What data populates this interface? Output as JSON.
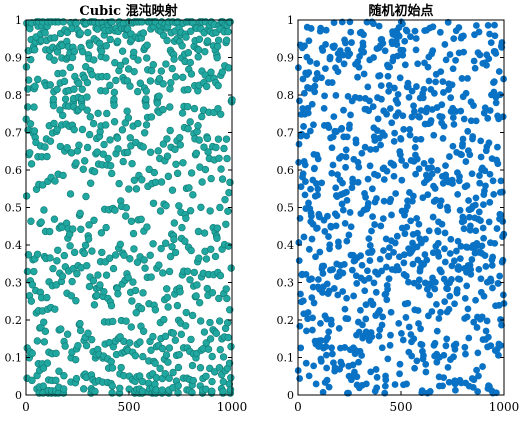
{
  "chart_data": [
    {
      "type": "scatter",
      "title": "Cubic 混沌映射",
      "xlabel": "",
      "ylabel": "",
      "xlim": [
        0,
        1000
      ],
      "ylim": [
        0,
        1
      ],
      "xticks": [
        0,
        500,
        1000
      ],
      "yticks": [
        0,
        0.1,
        0.2,
        0.3,
        0.4,
        0.5,
        0.6,
        0.7,
        0.8,
        0.9,
        1
      ],
      "xtick_labels": [
        "0",
        "500",
        "1000"
      ],
      "ytick_labels": [
        "0",
        "0.1",
        "0.2",
        "0.3",
        "0.4",
        "0.5",
        "0.6",
        "0.7",
        "0.8",
        "0.9",
        "1"
      ],
      "point_count": 1000,
      "marker_fill": "#20a7a0",
      "marker_edge": "#117a74",
      "grid": false,
      "distribution": "cubic chaotic map values: dense near 0.97-1.0 and near 0.02-0.1, banded/clustered elsewhere"
    },
    {
      "type": "scatter",
      "title": "随机初始点",
      "xlabel": "",
      "ylabel": "",
      "xlim": [
        0,
        1000
      ],
      "ylim": [
        0,
        1
      ],
      "xticks": [
        0,
        500,
        1000
      ],
      "yticks": [
        0,
        0.1,
        0.2,
        0.3,
        0.4,
        0.5,
        0.6,
        0.7,
        0.8,
        0.9,
        1
      ],
      "xtick_labels": [
        "0",
        "500",
        "1000"
      ],
      "ytick_labels": [
        "0",
        "0.1",
        "0.2",
        "0.3",
        "0.4",
        "0.5",
        "0.6",
        "0.7",
        "0.8",
        "0.9",
        "1"
      ],
      "point_count": 1000,
      "marker_fill": "#0a72c4",
      "marker_edge": "#0a72c4",
      "grid": false,
      "distribution": "uniform random in [0,1]"
    }
  ]
}
